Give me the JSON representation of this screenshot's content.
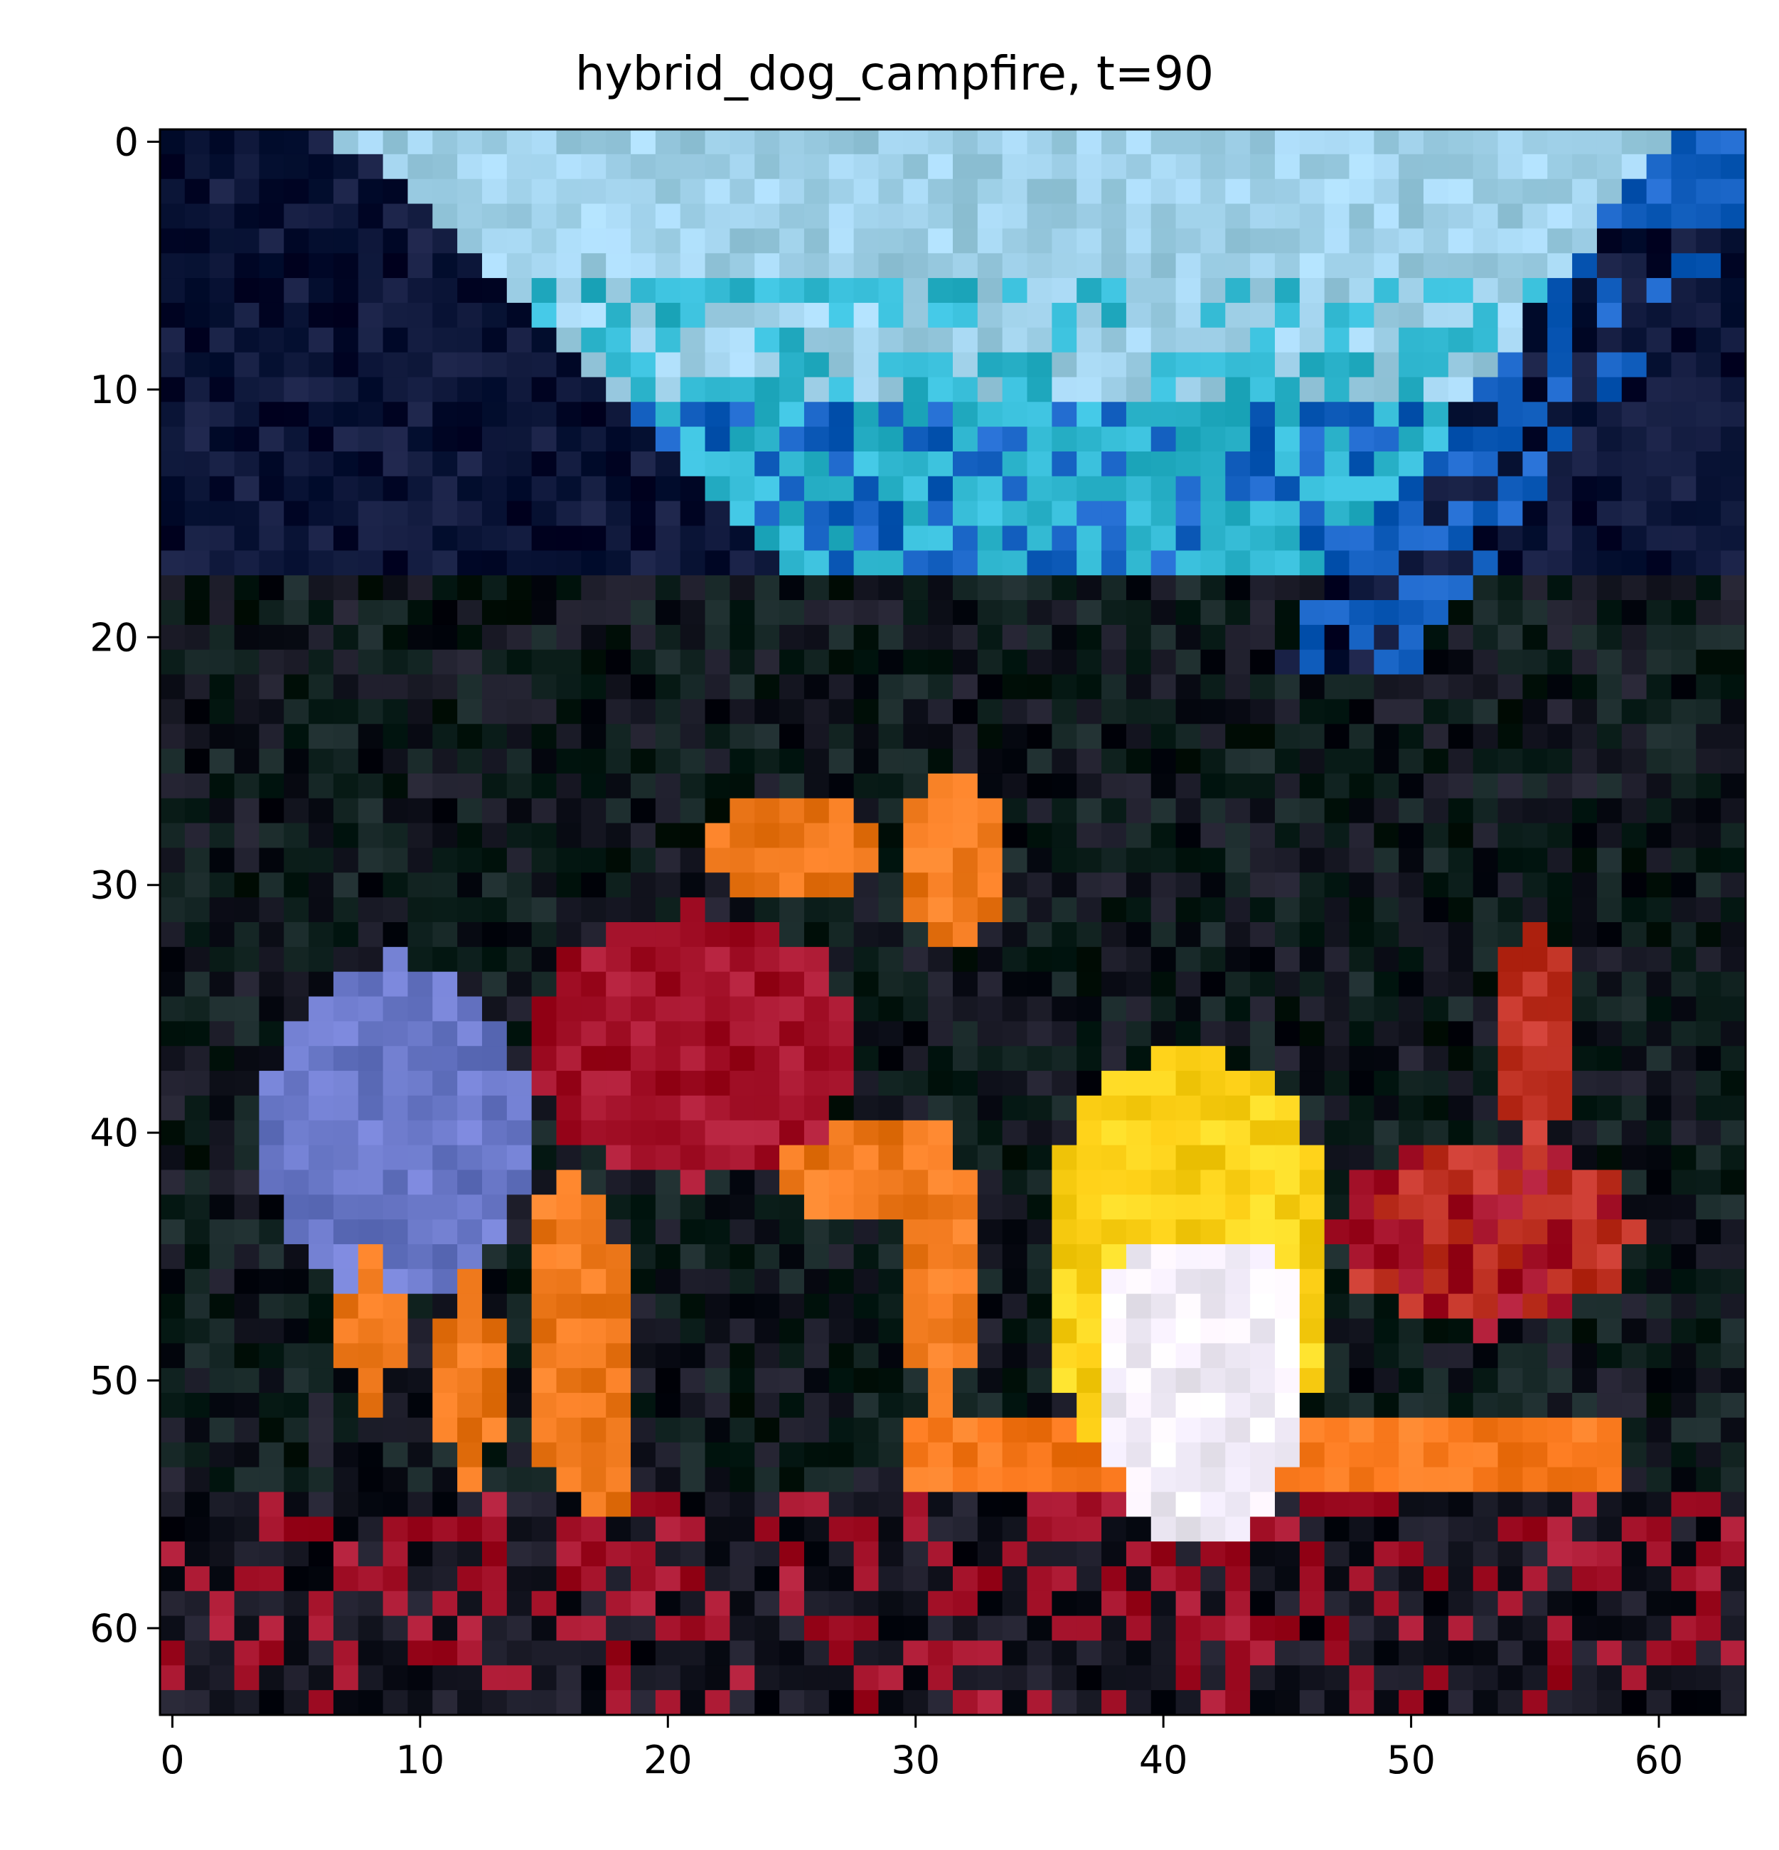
{
  "title": "hybrid_dog_campfire, t=90",
  "image": {
    "grid_size": [
      64,
      64
    ],
    "description_colors": {
      "sky_light": "#9fd0e8",
      "sky_cyan": "#2fb6cf",
      "sky_blue": "#1460c0",
      "dark_navy": "#0a1436",
      "dark_green": "#0d1f1c",
      "dark_ground": "#141520",
      "dog_red": "#a4122a",
      "dog_orange": "#f07a1e",
      "dog_lavender": "#6a78c8",
      "fire_yellow": "#ffd21a",
      "fire_white": "#f4eefc",
      "ember_red": "#c03224",
      "log_orange": "#f8781c"
    }
  },
  "axes": {
    "x_ticks": [
      "0",
      "10",
      "20",
      "30",
      "40",
      "50",
      "60"
    ],
    "y_ticks": [
      "0",
      "10",
      "20",
      "30",
      "40",
      "50",
      "60"
    ]
  }
}
